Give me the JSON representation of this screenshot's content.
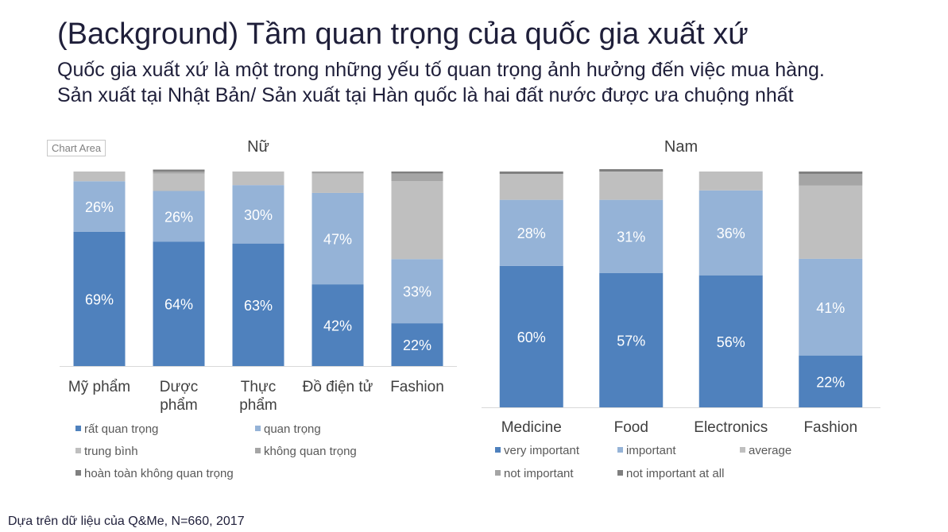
{
  "header": {
    "title": "(Background) Tầm quan trọng của quốc gia xuất xứ",
    "subtitle_line1": "Quốc gia xuất xứ là một trong những yếu tố quan trọng ảnh hưởng đến việc mua hàng.",
    "subtitle_line2": "Sản xuất tại Nhật Bản/ Sản xuất tại Hàn quốc là hai đất nước được ưa chuộng nhất"
  },
  "chart_area_tag": "Chart Area",
  "footer": {
    "source": "Dựa trên dữ liệu của Q&Me, N=660, 2017"
  },
  "chart_data": [
    {
      "type": "bar",
      "stacked": true,
      "title": "Nữ",
      "categories": [
        "Mỹ phẩm",
        "Dược phẩm",
        "Thực phẩm",
        "Đồ điện tử",
        "Fashion"
      ],
      "category_lines": [
        [
          "Mỹ phẩm"
        ],
        [
          "Dược",
          "phẩm"
        ],
        [
          "Thực",
          "phẩm"
        ],
        [
          "Đồ điện tử"
        ],
        [
          "Fashion"
        ]
      ],
      "series": [
        {
          "name": "rất quan trọng",
          "color": "#4f81bd",
          "values": [
            69,
            64,
            63,
            42,
            22
          ],
          "labels": [
            "69%",
            "64%",
            "63%",
            "42%",
            "22%"
          ]
        },
        {
          "name": "quan trọng",
          "color": "#95b3d7",
          "values": [
            26,
            26,
            30,
            47,
            33
          ],
          "labels": [
            "26%",
            "26%",
            "30%",
            "47%",
            "33%"
          ]
        },
        {
          "name": "trung bình",
          "color": "#bfbfbf",
          "values": [
            5,
            9,
            7,
            10,
            40
          ],
          "labels": []
        },
        {
          "name": "không quan trọng",
          "color": "#a5a5a5",
          "values": [
            0,
            1,
            0,
            1,
            4
          ],
          "labels": []
        },
        {
          "name": "hoàn toàn không quan trọng",
          "color": "#7f7f7f",
          "values": [
            0,
            1,
            0,
            0,
            1
          ],
          "labels": []
        }
      ],
      "ylim": [
        0,
        100
      ],
      "grid": false,
      "legend_position": "bottom"
    },
    {
      "type": "bar",
      "stacked": true,
      "title": "Nam",
      "categories": [
        "Medicine",
        "Food",
        "Electronics",
        "Fashion"
      ],
      "category_lines": [
        [
          "Medicine"
        ],
        [
          "Food"
        ],
        [
          "Electronics"
        ],
        [
          "Fashion"
        ]
      ],
      "series": [
        {
          "name": "very important",
          "color": "#4f81bd",
          "values": [
            60,
            57,
            56,
            22
          ],
          "labels": [
            "60%",
            "57%",
            "56%",
            "22%"
          ]
        },
        {
          "name": "important",
          "color": "#95b3d7",
          "values": [
            28,
            31,
            36,
            41
          ],
          "labels": [
            "28%",
            "31%",
            "36%",
            "41%"
          ]
        },
        {
          "name": "average",
          "color": "#bfbfbf",
          "values": [
            11,
            12,
            8,
            31
          ],
          "labels": []
        },
        {
          "name": "not important",
          "color": "#a5a5a5",
          "values": [
            0,
            0,
            0,
            5
          ],
          "labels": []
        },
        {
          "name": "not important at all",
          "color": "#7f7f7f",
          "values": [
            1,
            1,
            0,
            1
          ],
          "labels": []
        }
      ],
      "ylim": [
        0,
        100
      ],
      "grid": false,
      "legend_position": "bottom"
    }
  ]
}
